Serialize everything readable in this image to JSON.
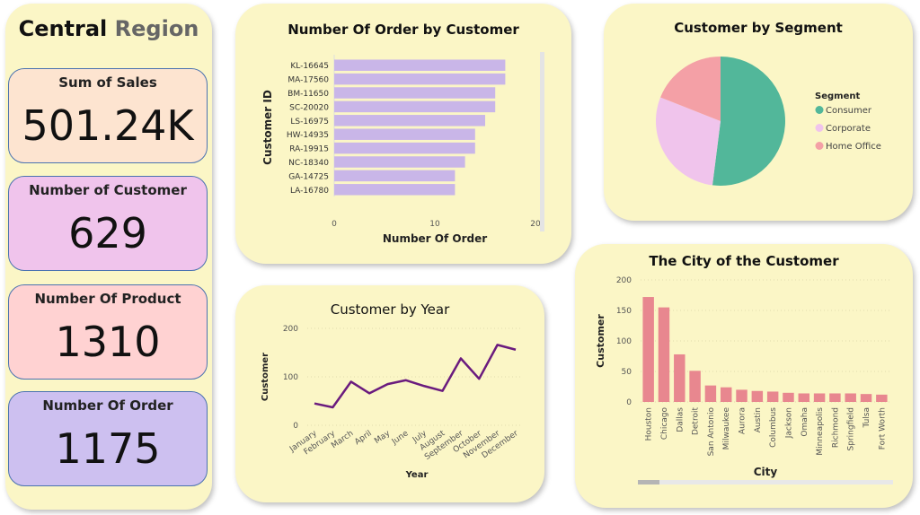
{
  "region": {
    "title_main": "Central",
    "title_accent": "Region"
  },
  "colors": {
    "panel": "#fbf6c6",
    "sales": "#fde4d0",
    "customer": "#f0c4ec",
    "product": "#ffd2d2",
    "order": "#cdc0f0"
  },
  "kpis": [
    {
      "label": "Sum of Sales",
      "value": "501.24K",
      "color": "#fde4d0"
    },
    {
      "label": "Number of Customer",
      "value": "629",
      "color": "#f0c4ec"
    },
    {
      "label": "Number Of Product",
      "value": "1310",
      "color": "#ffd2d2"
    },
    {
      "label": "Number Of Order",
      "value": "1175",
      "color": "#cdc0f0"
    }
  ],
  "chart_data": [
    {
      "type": "bar",
      "orientation": "horizontal",
      "title": "Number Of Order by Customer",
      "xlabel": "Number Of Order",
      "ylabel": "Customer ID",
      "categories": [
        "KL-16645",
        "MA-17560",
        "BM-11650",
        "SC-20020",
        "LS-16975",
        "HW-14935",
        "RA-19915",
        "NC-18340",
        "GA-14725",
        "LA-16780"
      ],
      "values": [
        17,
        17,
        16,
        16,
        15,
        14,
        14,
        13,
        12,
        12
      ],
      "xlim": [
        0,
        20
      ],
      "xticks": [
        "0",
        "10",
        "20"
      ],
      "color": "#c9b6e8"
    },
    {
      "type": "pie",
      "title": "Customer by Segment",
      "legend_title": "Segment",
      "labels": [
        "Consumer",
        "Corporate",
        "Home Office"
      ],
      "values": [
        52,
        29,
        19
      ],
      "colors": [
        "#52b79a",
        "#f0c4ec",
        "#f4a0a6"
      ],
      "legend": "right"
    },
    {
      "type": "line",
      "title": "Customer by Year",
      "xlabel": "Year",
      "ylabel": "Customer",
      "categories": [
        "January",
        "February",
        "March",
        "April",
        "May",
        "June",
        "July",
        "August",
        "September",
        "October",
        "November",
        "December"
      ],
      "values": [
        45,
        37,
        90,
        66,
        85,
        93,
        81,
        71,
        138,
        96,
        166,
        156
      ],
      "ylim": [
        0,
        200
      ],
      "yticks": [
        "0",
        "100",
        "200"
      ],
      "color": "#6a1b7e"
    },
    {
      "type": "bar",
      "title": "The City of the Customer",
      "xlabel": "City",
      "ylabel": "Customer",
      "categories": [
        "Houston",
        "Chicago",
        "Dallas",
        "Detroit",
        "San Antonio",
        "Milwaukee",
        "Aurora",
        "Austin",
        "Columbus",
        "Jackson",
        "Omaha",
        "Minneapolis",
        "Richmond",
        "Springfield",
        "Tulsa",
        "Fort Worth"
      ],
      "values": [
        172,
        155,
        78,
        51,
        27,
        24,
        20,
        18,
        17,
        15,
        14,
        14,
        14,
        14,
        13,
        12
      ],
      "ylim": [
        0,
        200
      ],
      "yticks": [
        "0",
        "50",
        "100",
        "150",
        "200"
      ],
      "color": "#e8878f"
    }
  ]
}
